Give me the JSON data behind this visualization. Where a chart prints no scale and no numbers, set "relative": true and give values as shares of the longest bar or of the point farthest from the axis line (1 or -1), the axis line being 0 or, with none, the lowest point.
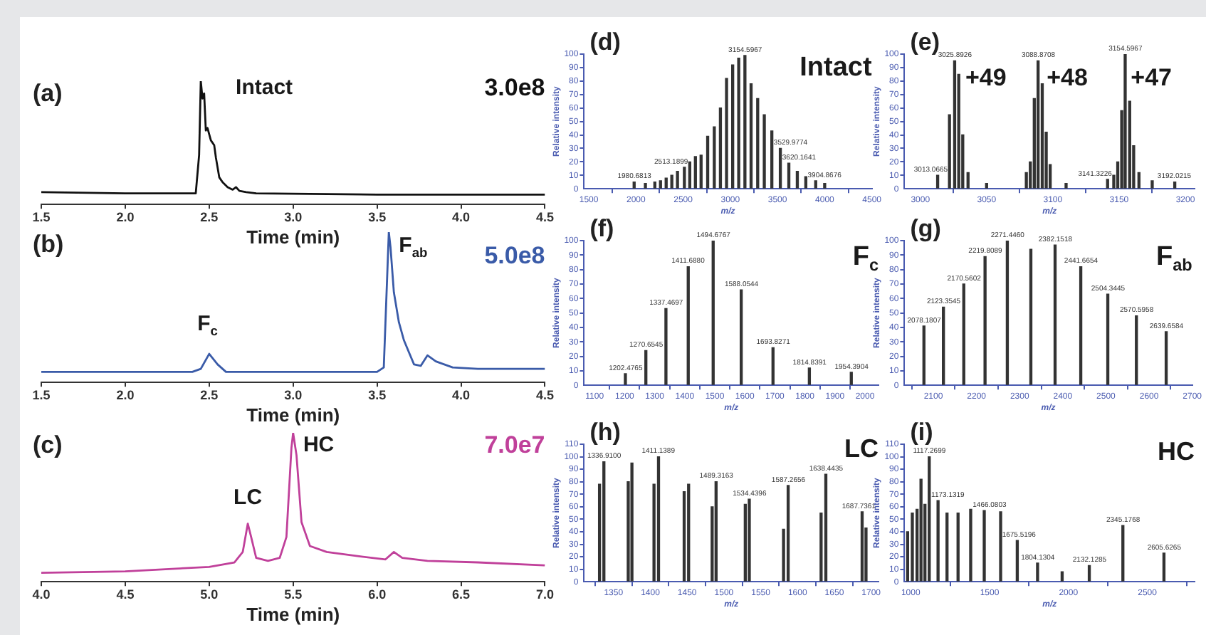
{
  "chart_data": [
    {
      "type": "line",
      "title": "(a)",
      "xlabel": "Time (min)",
      "relative": true,
      "xlim": [
        1.5,
        4.5
      ],
      "xticks": [
        1.5,
        {
          "value": 2,
          "label": "2.0"
        },
        2.5,
        {
          "value": 3,
          "label": "3.0"
        },
        3.5,
        {
          "value": 4,
          "label": "4.0"
        },
        4.5
      ],
      "x": [
        1.5,
        2.0,
        2.42,
        2.44,
        2.45,
        2.46,
        2.47,
        2.48,
        2.49,
        2.51,
        2.53,
        2.54,
        2.56,
        2.58,
        2.61,
        2.64,
        2.66,
        2.68,
        2.72,
        2.78,
        3.5,
        4.5
      ],
      "series": [
        {
          "color": "#111111",
          "values": [
            0.1,
            0.09,
            0.09,
            0.4,
            1.0,
            0.86,
            0.9,
            0.6,
            0.62,
            0.52,
            0.48,
            0.38,
            0.22,
            0.18,
            0.14,
            0.12,
            0.14,
            0.11,
            0.1,
            0.09,
            0.08,
            0.08
          ]
        }
      ],
      "annotations": [
        "Intact",
        "3.0e8"
      ]
    },
    {
      "type": "bar",
      "title": "(d)",
      "xlabel": "m/z",
      "ylabel": "Relative intensity",
      "xlim": [
        1450,
        4500
      ],
      "xticks": [
        1500,
        2000,
        2500,
        3000,
        3500,
        4000,
        4500
      ],
      "ylim": [
        0,
        100
      ],
      "yticks": [
        0,
        10,
        20,
        30,
        40,
        50,
        60,
        70,
        80,
        90,
        100
      ],
      "x": [
        1980.6813,
        2100,
        2200,
        2260,
        2320,
        2380,
        2440,
        2513.1899,
        2570,
        2630,
        2690,
        2760,
        2830,
        2895,
        2960,
        3025,
        3089,
        3154.5967,
        3220,
        3290,
        3360,
        3440,
        3529.9774,
        3620.1641,
        3710,
        3800,
        3904.8676,
        4000
      ],
      "series": [
        {
          "color": "#333333",
          "values": [
            5,
            4,
            5,
            6,
            8,
            10,
            13,
            16,
            20,
            24,
            25,
            39,
            46,
            60,
            82,
            92,
            97,
            99,
            78,
            67,
            55,
            43,
            30,
            19,
            13,
            9,
            6,
            4
          ]
        }
      ],
      "annotations": [
        "Intact",
        {
          "text": "1980.6813",
          "x": 1980.6813,
          "y": 5
        },
        {
          "text": "2513.1899",
          "x": 2513.1899,
          "y": 16
        },
        {
          "text": "3154.5967",
          "x": 3154.5967,
          "y": 99
        },
        {
          "text": "3529.9774",
          "x": 3529.9774,
          "y": 30
        },
        {
          "text": "3620.1641",
          "x": 3620.1641,
          "y": 19
        },
        {
          "text": "3904.8676",
          "x": 3904.8676,
          "y": 6
        }
      ]
    },
    {
      "type": "bar",
      "title": "(e)",
      "xlabel": "m/z",
      "ylabel": "Relative intensity",
      "xlim": [
        2988,
        3207
      ],
      "xticks": [
        3000,
        3050,
        3100,
        3150,
        3200
      ],
      "ylim": [
        0,
        100
      ],
      "yticks": [
        0,
        10,
        20,
        30,
        40,
        50,
        60,
        70,
        80,
        90,
        100
      ],
      "x": [
        3013.0665,
        3022,
        3025.8926,
        3029,
        3032,
        3036,
        3050,
        3080,
        3083,
        3086,
        3088.8708,
        3092,
        3095,
        3098,
        3110,
        3141.3226,
        3146,
        3149,
        3152,
        3154.5967,
        3158,
        3161,
        3165,
        3175,
        3192.0215
      ],
      "series": [
        {
          "color": "#333333",
          "values": [
            10,
            55,
            95,
            85,
            40,
            12,
            4,
            12,
            20,
            67,
            95,
            78,
            42,
            18,
            4,
            7,
            10,
            20,
            58,
            100,
            65,
            32,
            12,
            6,
            5
          ]
        }
      ],
      "annotations": [
        "+49",
        "+48",
        "+47",
        {
          "text": "3013.0665",
          "x": 3013.0665,
          "y": 10
        },
        {
          "text": "3025.8926",
          "x": 3025.8926,
          "y": 95
        },
        {
          "text": "3088.8708",
          "x": 3088.8708,
          "y": 95
        },
        {
          "text": "3141.3226",
          "x": 3141.3226,
          "y": 7
        },
        {
          "text": "3154.5967",
          "x": 3154.5967,
          "y": 100
        },
        {
          "text": "3192.0215",
          "x": 3192.0215,
          "y": 5
        }
      ]
    },
    {
      "type": "line",
      "title": "(b)",
      "xlabel": "Time (min)",
      "relative": true,
      "xlim": [
        1.5,
        4.5
      ],
      "xticks": [
        1.5,
        {
          "value": 2,
          "label": "2.0"
        },
        2.5,
        {
          "value": 3,
          "label": "3.0"
        },
        3.5,
        {
          "value": 4,
          "label": "4.0"
        },
        4.5
      ],
      "x": [
        1.5,
        2.4,
        2.45,
        2.5,
        2.55,
        2.6,
        3.5,
        3.54,
        3.56,
        3.57,
        3.58,
        3.6,
        3.63,
        3.66,
        3.69,
        3.72,
        3.76,
        3.8,
        3.85,
        3.95,
        4.1,
        4.5
      ],
      "series": [
        {
          "color": "#3a5ba8",
          "values": [
            0.07,
            0.07,
            0.09,
            0.19,
            0.12,
            0.07,
            0.07,
            0.1,
            0.7,
            1.0,
            0.9,
            0.6,
            0.4,
            0.28,
            0.2,
            0.12,
            0.11,
            0.18,
            0.14,
            0.1,
            0.09,
            0.09
          ]
        }
      ],
      "annotations": [
        "F$_{c}$",
        "F$_{ab}$",
        "5.0e8"
      ]
    },
    {
      "type": "bar",
      "title": "(f)",
      "xlabel": "m/z",
      "ylabel": "Relative intensity",
      "xlim": [
        1065,
        2045
      ],
      "xticks": [
        1100,
        1200,
        1300,
        1400,
        1500,
        1600,
        1700,
        1800,
        1900,
        2000
      ],
      "ylim": [
        0,
        100
      ],
      "yticks": [
        0,
        10,
        20,
        30,
        40,
        50,
        60,
        70,
        80,
        90,
        100
      ],
      "x": [
        1202.4765,
        1270.6545,
        1337.4697,
        1411.688,
        1494.6767,
        1588.0544,
        1693.8271,
        1814.8391,
        1954.3904
      ],
      "series": [
        {
          "color": "#333333",
          "values": [
            8,
            24,
            53,
            82,
            100,
            66,
            26,
            12,
            9
          ]
        }
      ],
      "annotations": [
        "F$_{c}$",
        {
          "text": "1202.4765",
          "x": 1202.4765,
          "y": 8
        },
        {
          "text": "1270.6545",
          "x": 1270.6545,
          "y": 24
        },
        {
          "text": "1337.4697",
          "x": 1337.4697,
          "y": 53
        },
        {
          "text": "1411.6880",
          "x": 1411.688,
          "y": 82
        },
        {
          "text": "1494.6767",
          "x": 1494.6767,
          "y": 100
        },
        {
          "text": "1588.0544",
          "x": 1588.0544,
          "y": 66
        },
        {
          "text": "1693.8271",
          "x": 1693.8271,
          "y": 26
        },
        {
          "text": "1814.8391",
          "x": 1814.8391,
          "y": 12
        },
        {
          "text": "1954.3904",
          "x": 1954.3904,
          "y": 9
        }
      ]
    },
    {
      "type": "bar",
      "title": "(g)",
      "xlabel": "m/z",
      "ylabel": "Relative intensity",
      "xlim": [
        2033,
        2700
      ],
      "xticks": [
        2100,
        2200,
        2300,
        2400,
        2500,
        2600,
        2700
      ],
      "ylim": [
        0,
        100
      ],
      "yticks": [
        0,
        10,
        20,
        30,
        40,
        50,
        60,
        70,
        80,
        90,
        100
      ],
      "x": [
        2078.1807,
        2123.3545,
        2170.5602,
        2219.8089,
        2271.446,
        2326,
        2382.1518,
        2441.6654,
        2504.3445,
        2570.5958,
        2639.6584
      ],
      "series": [
        {
          "color": "#333333",
          "values": [
            41,
            54,
            70,
            89,
            100,
            94,
            97,
            82,
            63,
            48,
            37
          ]
        }
      ],
      "annotations": [
        "F$_{ab}$",
        {
          "text": "2078.1807",
          "x": 2078.1807,
          "y": 41
        },
        {
          "text": "2123.3545",
          "x": 2123.3545,
          "y": 54
        },
        {
          "text": "2170.5602",
          "x": 2170.5602,
          "y": 70
        },
        {
          "text": "2219.8089",
          "x": 2219.8089,
          "y": 89
        },
        {
          "text": "2271.4460",
          "x": 2271.446,
          "y": 100
        },
        {
          "text": "2382.1518",
          "x": 2382.1518,
          "y": 97
        },
        {
          "text": "2441.6654",
          "x": 2441.6654,
          "y": 82
        },
        {
          "text": "2504.3445",
          "x": 2504.3445,
          "y": 63
        },
        {
          "text": "2570.5958",
          "x": 2570.5958,
          "y": 48
        },
        {
          "text": "2639.6584",
          "x": 2639.6584,
          "y": 37
        }
      ]
    },
    {
      "type": "line",
      "title": "(c)",
      "xlabel": "Time (min)",
      "relative": true,
      "xlim": [
        4,
        7
      ],
      "xticks": [
        {
          "value": 4,
          "label": "4.0"
        },
        4.5,
        {
          "value": 5,
          "label": "5.0"
        },
        5.5,
        {
          "value": 6,
          "label": "6.0"
        },
        6.5,
        {
          "value": 7,
          "label": "7.0"
        }
      ],
      "x": [
        4.0,
        4.5,
        5.0,
        5.15,
        5.2,
        5.23,
        5.25,
        5.28,
        5.35,
        5.42,
        5.46,
        5.49,
        5.5,
        5.52,
        5.55,
        5.6,
        5.7,
        5.9,
        6.05,
        6.1,
        6.15,
        6.3,
        6.6,
        7.0
      ],
      "series": [
        {
          "color": "#c0409a",
          "values": [
            0.06,
            0.07,
            0.1,
            0.13,
            0.2,
            0.39,
            0.3,
            0.16,
            0.14,
            0.16,
            0.3,
            0.9,
            1.0,
            0.85,
            0.4,
            0.24,
            0.2,
            0.17,
            0.15,
            0.2,
            0.16,
            0.14,
            0.13,
            0.11
          ]
        }
      ],
      "annotations": [
        "LC",
        "HC",
        "7.0e7"
      ]
    },
    {
      "type": "bar",
      "title": "(h)",
      "xlabel": "m/z",
      "ylabel": "Relative intensity",
      "xlim": [
        1310,
        1710
      ],
      "xticks": [
        1350,
        1400,
        1450,
        1500,
        1550,
        1600,
        1650,
        1700
      ],
      "ylim": [
        0,
        110
      ],
      "yticks": [
        0,
        10,
        20,
        30,
        40,
        50,
        60,
        70,
        80,
        90,
        100,
        110
      ],
      "x": [
        1331,
        1336.91,
        1370,
        1375,
        1405,
        1411.1389,
        1446,
        1452,
        1484,
        1489.3163,
        1529,
        1534.4396,
        1581,
        1587.2656,
        1632,
        1638.4435,
        1687.7361,
        1693
      ],
      "series": [
        {
          "color": "#333333",
          "values": [
            78,
            96,
            80,
            95,
            78,
            100,
            72,
            78,
            60,
            80,
            62,
            66,
            42,
            77,
            55,
            86,
            56,
            43
          ]
        }
      ],
      "annotations": [
        "LC",
        {
          "text": "1336.9100",
          "x": 1336.91,
          "y": 96
        },
        {
          "text": "1411.1389",
          "x": 1411.1389,
          "y": 100
        },
        {
          "text": "1489.3163",
          "x": 1489.3163,
          "y": 80
        },
        {
          "text": "1534.4396",
          "x": 1534.4396,
          "y": 66
        },
        {
          "text": "1587.2656",
          "x": 1587.2656,
          "y": 77
        },
        {
          "text": "1638.4435",
          "x": 1638.4435,
          "y": 86
        },
        {
          "text": "1687.7361",
          "x": 1687.7361,
          "y": 56
        }
      ]
    },
    {
      "type": "bar",
      "title": "(i)",
      "xlabel": "m/z",
      "ylabel": "Relative intensity",
      "xlim": [
        960,
        2800
      ],
      "xticks": [
        1000,
        1500,
        2000,
        2500
      ],
      "ylim": [
        0,
        110
      ],
      "yticks": [
        0,
        10,
        20,
        30,
        40,
        50,
        60,
        70,
        80,
        90,
        100,
        110
      ],
      "x": [
        980,
        1010,
        1040,
        1065,
        1090,
        1117.2699,
        1173.1319,
        1230,
        1300,
        1380,
        1466.0803,
        1570,
        1675.5196,
        1804.1304,
        1960,
        2132.1285,
        2345.1768,
        2605.6265
      ],
      "series": [
        {
          "color": "#333333",
          "values": [
            40,
            55,
            58,
            82,
            62,
            100,
            65,
            55,
            55,
            58,
            57,
            56,
            33,
            15,
            8,
            13,
            45,
            23
          ]
        }
      ],
      "annotations": [
        "HC",
        {
          "text": "1117.2699",
          "x": 1117.2699,
          "y": 100
        },
        {
          "text": "1173.1319",
          "x": 1173.1319,
          "y": 65
        },
        {
          "text": "1466.0803",
          "x": 1466.0803,
          "y": 57
        },
        {
          "text": "1675.5196",
          "x": 1675.5196,
          "y": 33
        },
        {
          "text": "1804.1304",
          "x": 1804.1304,
          "y": 15
        },
        {
          "text": "2132.1285",
          "x": 2132.1285,
          "y": 13
        },
        {
          "text": "2345.1768",
          "x": 2345.1768,
          "y": 45
        },
        {
          "text": "2605.6265",
          "x": 2605.6265,
          "y": 23
        }
      ]
    }
  ]
}
